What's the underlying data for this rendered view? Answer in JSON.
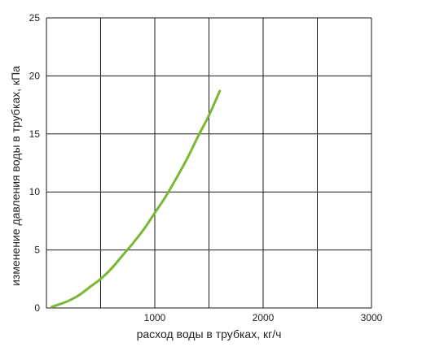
{
  "chart_data": {
    "type": "line",
    "title": "",
    "xlabel": "расход воды в трубках, кг/ч",
    "ylabel": "изменение давления воды в трубках, кПа",
    "xlim": [
      0,
      3000
    ],
    "ylim": [
      0,
      25
    ],
    "grid": true,
    "x_ticks": [
      1000,
      2000,
      3000
    ],
    "y_ticks": [
      0,
      5,
      10,
      15,
      20,
      25
    ],
    "colors": {
      "line": "#7ab733",
      "grid": "#1a1a1a"
    },
    "series": [
      {
        "x": [
          50,
          100,
          200,
          300,
          400,
          500,
          600,
          700,
          800,
          900,
          1000,
          1100,
          1200,
          1300,
          1400,
          1500,
          1600
        ],
        "values": [
          0.1,
          0.25,
          0.6,
          1.1,
          1.8,
          2.5,
          3.4,
          4.5,
          5.6,
          6.8,
          8.2,
          9.6,
          11.2,
          12.9,
          14.8,
          16.6,
          18.7
        ]
      }
    ]
  }
}
